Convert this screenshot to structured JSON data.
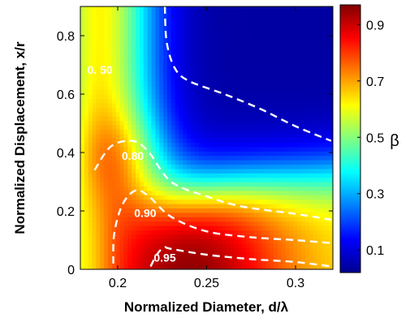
{
  "chart_data": {
    "type": "heatmap",
    "xlabel": "Normalized Diameter, d/λ",
    "ylabel": "Normalized Displacement, x/r",
    "xlim": [
      0.179,
      0.321
    ],
    "ylim": [
      0,
      0.9
    ],
    "x_ticks": [
      {
        "value": 0.2,
        "label": "0.2"
      },
      {
        "value": 0.25,
        "label": "0.25"
      },
      {
        "value": 0.3,
        "label": "0.3"
      }
    ],
    "y_ticks": [
      {
        "value": 0,
        "label": "0"
      },
      {
        "value": 0.2,
        "label": "0.2"
      },
      {
        "value": 0.4,
        "label": "0.4"
      },
      {
        "value": 0.6,
        "label": "0.6"
      },
      {
        "value": 0.8,
        "label": "0.8"
      }
    ],
    "colorbar": {
      "label": "β",
      "range": [
        0.02,
        0.97
      ],
      "colormap": "jet",
      "ticks": [
        {
          "value": 0.1,
          "label": "0.1"
        },
        {
          "value": 0.3,
          "label": "0.3"
        },
        {
          "value": 0.5,
          "label": "0.5"
        },
        {
          "value": 0.7,
          "label": "0.7"
        },
        {
          "value": 0.9,
          "label": "0.9"
        }
      ]
    },
    "contours": [
      {
        "level": 0.5,
        "label": "0. 50",
        "label_at": [
          0.19,
          0.68
        ],
        "points": [
          [
            0.2265,
            0.9
          ],
          [
            0.2275,
            0.78
          ],
          [
            0.232,
            0.69
          ],
          [
            0.24,
            0.645
          ],
          [
            0.26,
            0.6
          ],
          [
            0.28,
            0.55
          ],
          [
            0.3,
            0.49
          ],
          [
            0.32,
            0.44
          ]
        ]
      },
      {
        "level": 0.8,
        "label": "0.80",
        "label_at": [
          0.2085,
          0.385
        ],
        "points": [
          [
            0.187,
            0.34
          ],
          [
            0.196,
            0.42
          ],
          [
            0.208,
            0.44
          ],
          [
            0.217,
            0.405
          ],
          [
            0.23,
            0.3
          ],
          [
            0.25,
            0.25
          ],
          [
            0.27,
            0.215
          ],
          [
            0.3,
            0.19
          ],
          [
            0.32,
            0.17
          ]
        ]
      },
      {
        "level": 0.9,
        "label": "0.90",
        "label_at": [
          0.2155,
          0.19
        ],
        "points": [
          [
            0.1975,
            0.02
          ],
          [
            0.198,
            0.12
          ],
          [
            0.2025,
            0.22
          ],
          [
            0.21,
            0.27
          ],
          [
            0.2175,
            0.25
          ],
          [
            0.23,
            0.18
          ],
          [
            0.25,
            0.13
          ],
          [
            0.275,
            0.11
          ],
          [
            0.3,
            0.1
          ],
          [
            0.32,
            0.09
          ]
        ]
      },
      {
        "level": 0.95,
        "label": "0.95",
        "label_at": [
          0.2265,
          0.037
        ],
        "points": [
          [
            0.2185,
            0.01
          ],
          [
            0.222,
            0.05
          ],
          [
            0.226,
            0.075
          ],
          [
            0.23,
            0.07
          ],
          [
            0.25,
            0.05
          ],
          [
            0.275,
            0.035
          ],
          [
            0.3,
            0.025
          ],
          [
            0.32,
            0.01
          ]
        ]
      }
    ],
    "grid": false,
    "legend": "colorbar-right"
  }
}
